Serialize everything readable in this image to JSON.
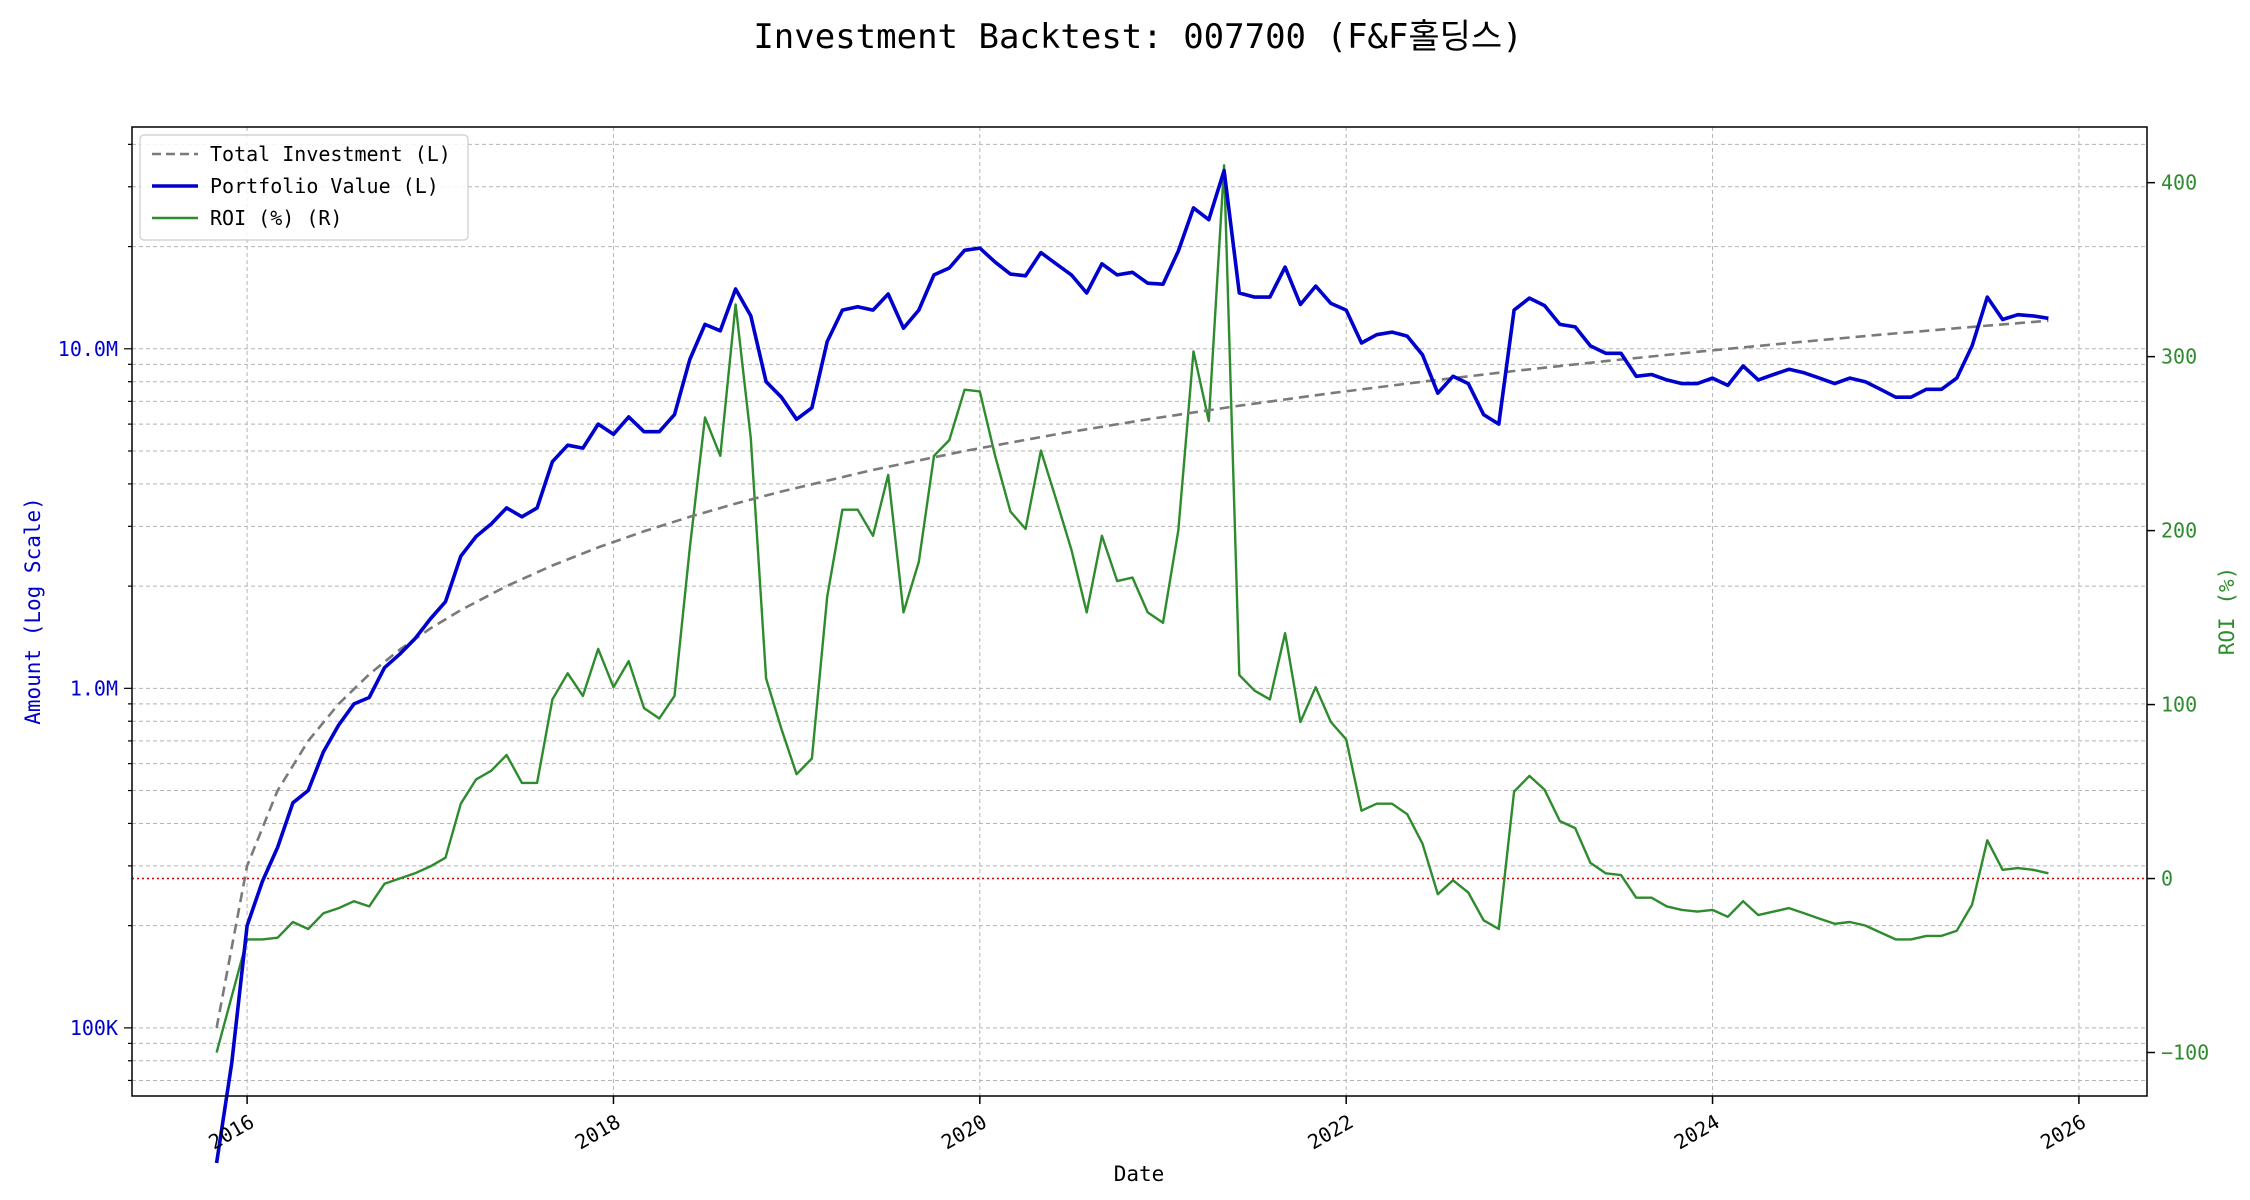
{
  "chart_data": {
    "type": "line",
    "title": "Investment Backtest: 007700 (F&F홀딩스)",
    "xlabel": "Date",
    "ylabel_left": "Amount (Log Scale)",
    "ylabel_right": "ROI (%)",
    "left_scale": "log",
    "left_ylim": [
      63000,
      45000000
    ],
    "right_ylim": [
      -125,
      432
    ],
    "xlim": [
      "2015-05-15",
      "2026-05-15"
    ],
    "x_ticks": [
      "2016",
      "2018",
      "2020",
      "2022",
      "2024",
      "2026"
    ],
    "left_ticks": [
      {
        "value": 100000,
        "label": "100K"
      },
      {
        "value": 1000000,
        "label": "1.0M"
      },
      {
        "value": 10000000,
        "label": "10.0M"
      }
    ],
    "right_ticks": [
      -100,
      0,
      100,
      200,
      300,
      400
    ],
    "grid": true,
    "legend_position": "top-left",
    "zero_line": {
      "value": 0,
      "axis": "right",
      "color": "#cc0000"
    },
    "colors": {
      "investment": "#7a7a7a",
      "portfolio": "#0000cc",
      "roi": "#2e8b2e",
      "left_axis": "#0000cc",
      "right_axis": "#2e8b2e"
    },
    "series": [
      {
        "name": "Total Investment (L)",
        "axis": "left",
        "style": "dashed",
        "x": [
          "2015-11",
          "2016-01",
          "2016-03",
          "2016-05",
          "2016-07",
          "2016-09",
          "2016-11",
          "2017-01",
          "2017-03",
          "2017-06",
          "2017-09",
          "2017-12",
          "2018-03",
          "2018-06",
          "2018-09",
          "2018-12",
          "2019-06",
          "2019-12",
          "2020-06",
          "2020-12",
          "2021-06",
          "2021-12",
          "2022-06",
          "2022-12",
          "2023-06",
          "2023-12",
          "2024-06",
          "2024-12",
          "2025-06",
          "2025-11"
        ],
        "values": [
          100000,
          300000,
          500000,
          700000,
          900000,
          1100000,
          1300000,
          1500000,
          1700000,
          2000000,
          2300000,
          2600000,
          2900000,
          3200000,
          3500000,
          3800000,
          4400000,
          5000000,
          5600000,
          6200000,
          6800000,
          7400000,
          8000000,
          8600000,
          9200000,
          9800000,
          10400000,
          11000000,
          11600000,
          12100000
        ]
      },
      {
        "name": "Portfolio Value (L)",
        "axis": "left",
        "style": "solid",
        "x": [
          "2015-11",
          "2015-12",
          "2016-01",
          "2016-02",
          "2016-03",
          "2016-04",
          "2016-05",
          "2016-06",
          "2016-07",
          "2016-08",
          "2016-09",
          "2016-10",
          "2016-11",
          "2016-12",
          "2017-01",
          "2017-02",
          "2017-03",
          "2017-04",
          "2017-05",
          "2017-06",
          "2017-07",
          "2017-08",
          "2017-09",
          "2017-10",
          "2017-11",
          "2017-12",
          "2018-01",
          "2018-02",
          "2018-03",
          "2018-04",
          "2018-05",
          "2018-06",
          "2018-07",
          "2018-08",
          "2018-09",
          "2018-10",
          "2018-11",
          "2018-12",
          "2019-01",
          "2019-02",
          "2019-03",
          "2019-04",
          "2019-05",
          "2019-06",
          "2019-07",
          "2019-08",
          "2019-09",
          "2019-10",
          "2019-11",
          "2019-12",
          "2020-01",
          "2020-02",
          "2020-03",
          "2020-04",
          "2020-05",
          "2020-06",
          "2020-07",
          "2020-08",
          "2020-09",
          "2020-10",
          "2020-11",
          "2020-12",
          "2021-01",
          "2021-02",
          "2021-03",
          "2021-04",
          "2021-05",
          "2021-06",
          "2021-07",
          "2021-08",
          "2021-09",
          "2021-10",
          "2021-11",
          "2021-12",
          "2022-01",
          "2022-02",
          "2022-03",
          "2022-04",
          "2022-05",
          "2022-06",
          "2022-07",
          "2022-08",
          "2022-09",
          "2022-10",
          "2022-11",
          "2022-12",
          "2023-01",
          "2023-02",
          "2023-03",
          "2023-04",
          "2023-05",
          "2023-06",
          "2023-07",
          "2023-08",
          "2023-09",
          "2023-10",
          "2023-11",
          "2023-12",
          "2024-01",
          "2024-02",
          "2024-03",
          "2024-04",
          "2024-05",
          "2024-06",
          "2024-07",
          "2024-08",
          "2024-09",
          "2024-10",
          "2024-11",
          "2024-12",
          "2025-01",
          "2025-02",
          "2025-03",
          "2025-04",
          "2025-05",
          "2025-06",
          "2025-07",
          "2025-08",
          "2025-09",
          "2025-10",
          "2025-11"
        ],
        "values": [
          40000,
          79000,
          200000,
          270000,
          340000,
          460000,
          500000,
          650000,
          780000,
          900000,
          940000,
          1150000,
          1260000,
          1400000,
          1600000,
          1800000,
          2450000,
          2800000,
          3050000,
          3400000,
          3200000,
          3400000,
          4650000,
          5200000,
          5100000,
          6000000,
          5600000,
          6300000,
          5700000,
          5700000,
          6400000,
          9300000,
          11800000,
          11300000,
          15000000,
          12500000,
          8000000,
          7200000,
          6200000,
          6700000,
          10500000,
          13000000,
          13300000,
          13000000,
          14500000,
          11500000,
          13000000,
          16500000,
          17300000,
          19500000,
          19800000,
          18000000,
          16600000,
          16400000,
          19200000,
          17800000,
          16500000,
          14600000,
          17800000,
          16500000,
          16800000,
          15600000,
          15500000,
          19400000,
          26000000,
          24000000,
          33500000,
          14600000,
          14200000,
          14200000,
          17400000,
          13500000,
          15300000,
          13600000,
          13000000,
          10400000,
          11000000,
          11200000,
          10900000,
          9600000,
          7400000,
          8300000,
          7900000,
          6400000,
          6000000,
          13000000,
          14100000,
          13400000,
          11800000,
          11600000,
          10200000,
          9700000,
          9700000,
          8300000,
          8400000,
          8100000,
          7900000,
          7900000,
          8200000,
          7800000,
          8900000,
          8100000,
          8400000,
          8700000,
          8500000,
          8200000,
          7900000,
          8200000,
          8000000,
          7600000,
          7200000,
          7200000,
          7600000,
          7600000,
          8200000,
          10200000,
          14200000,
          12200000,
          12600000,
          12500000,
          12300000
        ]
      },
      {
        "name": "ROI (%) (R)",
        "axis": "right",
        "style": "solid",
        "x": [
          "2015-11",
          "2016-01",
          "2016-02",
          "2016-03",
          "2016-04",
          "2016-05",
          "2016-06",
          "2016-07",
          "2016-08",
          "2016-09",
          "2016-10",
          "2016-11",
          "2016-12",
          "2017-01",
          "2017-02",
          "2017-03",
          "2017-04",
          "2017-05",
          "2017-06",
          "2017-07",
          "2017-08",
          "2017-09",
          "2017-10",
          "2017-11",
          "2017-12",
          "2018-01",
          "2018-02",
          "2018-03",
          "2018-04",
          "2018-05",
          "2018-06",
          "2018-07",
          "2018-08",
          "2018-09",
          "2018-10",
          "2018-11",
          "2018-12",
          "2019-01",
          "2019-02",
          "2019-03",
          "2019-04",
          "2019-05",
          "2019-06",
          "2019-07",
          "2019-08",
          "2019-09",
          "2019-10",
          "2019-11",
          "2019-12",
          "2020-01",
          "2020-02",
          "2020-03",
          "2020-04",
          "2020-05",
          "2020-06",
          "2020-07",
          "2020-08",
          "2020-09",
          "2020-10",
          "2020-11",
          "2020-12",
          "2021-01",
          "2021-02",
          "2021-03",
          "2021-04",
          "2021-05",
          "2021-06",
          "2021-07",
          "2021-08",
          "2021-09",
          "2021-10",
          "2021-11",
          "2021-12",
          "2022-01",
          "2022-02",
          "2022-03",
          "2022-04",
          "2022-05",
          "2022-06",
          "2022-07",
          "2022-08",
          "2022-09",
          "2022-10",
          "2022-11",
          "2022-12",
          "2023-01",
          "2023-02",
          "2023-03",
          "2023-04",
          "2023-05",
          "2023-06",
          "2023-07",
          "2023-08",
          "2023-09",
          "2023-10",
          "2023-11",
          "2023-12",
          "2024-01",
          "2024-02",
          "2024-03",
          "2024-04",
          "2024-05",
          "2024-06",
          "2024-07",
          "2024-08",
          "2024-09",
          "2024-10",
          "2024-11",
          "2024-12",
          "2025-01",
          "2025-02",
          "2025-03",
          "2025-04",
          "2025-05",
          "2025-06",
          "2025-07",
          "2025-08",
          "2025-09",
          "2025-10",
          "2025-11"
        ],
        "values": [
          -100,
          -35,
          -35,
          -34,
          -25,
          -29,
          -20,
          -17,
          -13,
          -16,
          -3,
          0,
          3,
          7,
          12,
          43,
          57,
          62,
          71,
          55,
          55,
          103,
          118,
          105,
          132,
          110,
          125,
          98,
          92,
          105,
          190,
          265,
          243,
          330,
          253,
          115,
          86,
          60,
          69,
          162,
          212,
          212,
          197,
          232,
          153,
          182,
          243,
          252,
          281,
          280,
          243,
          211,
          201,
          246,
          218,
          189,
          153,
          197,
          171,
          173,
          153,
          147,
          200,
          303,
          263,
          410,
          117,
          108,
          103,
          141,
          90,
          110,
          90,
          80,
          39,
          43,
          43,
          37,
          20,
          -9,
          -1,
          -8,
          -24,
          -29,
          50,
          59,
          51,
          33,
          29,
          9,
          3,
          2,
          -11,
          -11,
          -16,
          -18,
          -19,
          -18,
          -22,
          -13,
          -21,
          -19,
          -17,
          -20,
          -23,
          -26,
          -25,
          -27,
          -31,
          -35,
          -35,
          -33,
          -33,
          -30,
          -15,
          22,
          5,
          6,
          5,
          3
        ]
      }
    ]
  }
}
